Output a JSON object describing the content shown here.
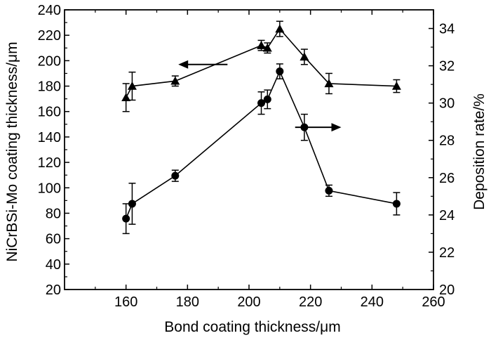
{
  "chart_data": {
    "type": "line",
    "title": "",
    "xlabel": "Bond coating thickness/μm",
    "ylabel_left": "NiCrBSi-Mo coating thickness/μm",
    "ylabel_right": "Deposition rate/%",
    "xlim": [
      140,
      260
    ],
    "ylim_left": [
      20,
      240
    ],
    "ylim_right": [
      20,
      35
    ],
    "x_ticks": [
      "160",
      "180",
      "200",
      "220",
      "240",
      "260"
    ],
    "y_left_ticks": [
      "20",
      "40",
      "60",
      "80",
      "100",
      "120",
      "140",
      "160",
      "180",
      "200",
      "220",
      "240"
    ],
    "y_right_ticks": [
      "20",
      "22",
      "24",
      "26",
      "28",
      "30",
      "32",
      "34"
    ],
    "grid": false,
    "series": [
      {
        "axis": "left",
        "marker": "triangle",
        "x": [
          160,
          162,
          176,
          204,
          206,
          210,
          218,
          226,
          248
        ],
        "y": [
          171,
          180,
          184,
          212,
          210,
          225,
          203,
          182,
          180
        ],
        "err": [
          11,
          11,
          4,
          4,
          4,
          6,
          6,
          8,
          5
        ]
      },
      {
        "axis": "right",
        "marker": "circle",
        "x": [
          160,
          162,
          176,
          204,
          206,
          210,
          218,
          226,
          248
        ],
        "y": [
          23.8,
          24.6,
          26.1,
          30.0,
          30.2,
          31.7,
          28.7,
          25.3,
          24.6
        ],
        "err": [
          0.8,
          1.1,
          0.3,
          0.6,
          0.5,
          0.4,
          0.7,
          0.3,
          0.6
        ]
      }
    ],
    "arrows": [
      {
        "x_from": 193,
        "x_to": 177,
        "axis": "left",
        "y": 197
      },
      {
        "x_from": 215,
        "x_to": 230,
        "axis": "right",
        "y": 28.7
      }
    ],
    "colors": {
      "line": "#000000",
      "marker": "#000000"
    }
  }
}
